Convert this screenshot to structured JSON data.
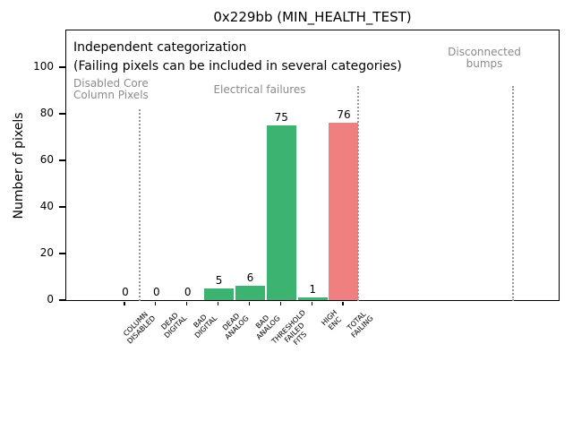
{
  "chart_data": {
    "type": "bar",
    "title": "0x229bb (MIN_HEALTH_TEST)",
    "xlabel": "",
    "ylabel": "Number of pixels",
    "ylim": [
      0,
      116
    ],
    "yticks": [
      0,
      20,
      40,
      60,
      80,
      100
    ],
    "grid": false,
    "legend": false,
    "categories": [
      "COLUMN\nDISABLED",
      "DEAD\nDIGITAL",
      "BAD\nDIGITAL",
      "DEAD\nANALOG",
      "BAD\nANALOG",
      "THRESHOLD\nFAILED\nFITS",
      "HIGH\nENC",
      "TOTAL\nFAILING"
    ],
    "values": [
      0,
      0,
      0,
      5,
      6,
      75,
      1,
      76
    ],
    "bar_colors": [
      "#3cb371",
      "#3cb371",
      "#3cb371",
      "#3cb371",
      "#3cb371",
      "#3cb371",
      "#3cb371",
      "#f08080"
    ],
    "annotations": {
      "note_line1": "Independent categorization",
      "note_line2": "(Failing pixels can be included in several categories)",
      "sections": [
        {
          "label": "Disabled Core\nColumn Pixels"
        },
        {
          "label": "Electrical failures"
        },
        {
          "label": "Disconnected\nbumps"
        }
      ]
    },
    "separators": [
      {
        "x": 0.5,
        "y_top": 82
      },
      {
        "x": 7.5,
        "y_top": 92
      },
      {
        "x": 12.45,
        "y_top": 92
      }
    ],
    "colors": {
      "pass_green": "#3cb371",
      "fail_red": "#f08080",
      "muted_text": "#8b8b8b",
      "separator": "#999999"
    }
  }
}
